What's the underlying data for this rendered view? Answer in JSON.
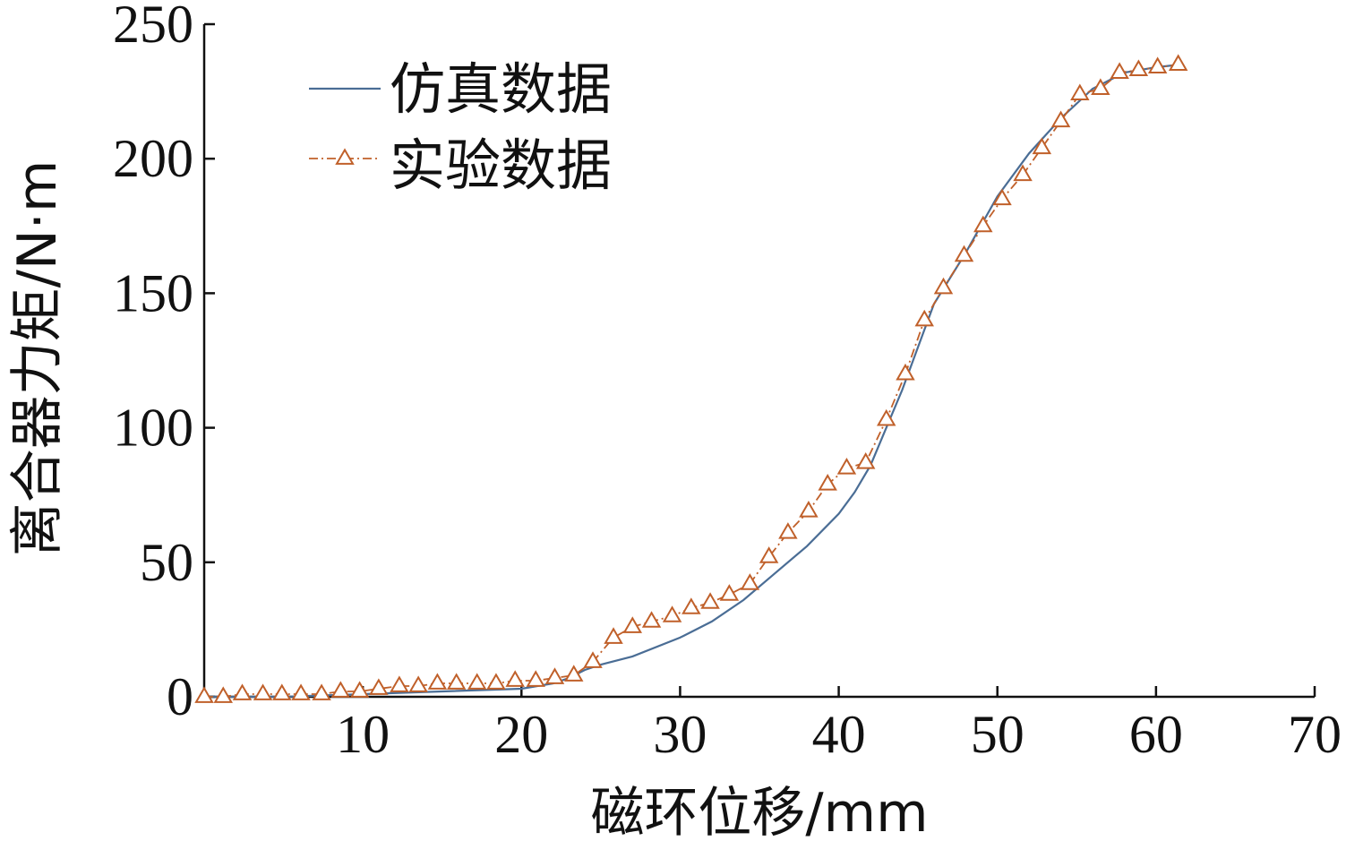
{
  "chart_data": {
    "type": "line",
    "xlabel": "磁环位移/mm",
    "ylabel": "离合器力矩/N·m",
    "xlim": [
      0,
      70
    ],
    "ylim": [
      0,
      250
    ],
    "x_ticks": [
      10,
      20,
      30,
      40,
      50,
      60,
      70
    ],
    "x_tick_labels": [
      "10",
      "20",
      "30",
      "40",
      "50",
      "60",
      "70"
    ],
    "y_ticks": [
      0,
      50,
      100,
      150,
      200,
      250
    ],
    "y_tick_labels": [
      "0",
      "50",
      "100",
      "150",
      "200",
      "250"
    ],
    "grid": false,
    "legend_position": "top-left",
    "series": [
      {
        "name": "仿真数据",
        "color": "#4a6d95",
        "style": "solid",
        "marker": "none",
        "points": [
          [
            0,
            0
          ],
          [
            5,
            0
          ],
          [
            10,
            1
          ],
          [
            15,
            2
          ],
          [
            20,
            3
          ],
          [
            22,
            5
          ],
          [
            23,
            7
          ],
          [
            24,
            10
          ],
          [
            25,
            12
          ],
          [
            27,
            15
          ],
          [
            30,
            22
          ],
          [
            32,
            28
          ],
          [
            34,
            36
          ],
          [
            36,
            46
          ],
          [
            38,
            56
          ],
          [
            40,
            68
          ],
          [
            41,
            76
          ],
          [
            42,
            86
          ],
          [
            43,
            100
          ],
          [
            44,
            114
          ],
          [
            45,
            130
          ],
          [
            46,
            146
          ],
          [
            48,
            165
          ],
          [
            50,
            186
          ],
          [
            52,
            202
          ],
          [
            54,
            215
          ],
          [
            56,
            226
          ],
          [
            58,
            232
          ],
          [
            60,
            234
          ],
          [
            61.5,
            235
          ]
        ]
      },
      {
        "name": "实验数据",
        "color": "#c0602a",
        "style": "dashdot",
        "marker": "triangle",
        "points": [
          [
            0,
            0
          ],
          [
            1.2,
            0
          ],
          [
            2.4,
            1
          ],
          [
            3.7,
            1
          ],
          [
            4.9,
            1
          ],
          [
            6.1,
            1
          ],
          [
            7.4,
            1
          ],
          [
            8.6,
            2
          ],
          [
            9.8,
            2
          ],
          [
            11.0,
            3
          ],
          [
            12.3,
            4
          ],
          [
            13.5,
            4
          ],
          [
            14.7,
            5
          ],
          [
            15.9,
            5
          ],
          [
            17.2,
            5
          ],
          [
            18.4,
            5
          ],
          [
            19.6,
            6
          ],
          [
            20.9,
            6
          ],
          [
            22.1,
            7
          ],
          [
            23.3,
            8
          ],
          [
            24.5,
            13
          ],
          [
            25.8,
            22
          ],
          [
            27.0,
            26
          ],
          [
            28.2,
            28
          ],
          [
            29.5,
            30
          ],
          [
            30.7,
            33
          ],
          [
            31.9,
            35
          ],
          [
            33.1,
            38
          ],
          [
            34.4,
            42
          ],
          [
            35.6,
            52
          ],
          [
            36.8,
            61
          ],
          [
            38.1,
            69
          ],
          [
            39.3,
            79
          ],
          [
            40.5,
            85
          ],
          [
            41.7,
            87
          ],
          [
            43.0,
            103
          ],
          [
            44.2,
            120
          ],
          [
            45.4,
            140
          ],
          [
            46.6,
            152
          ],
          [
            47.9,
            164
          ],
          [
            49.1,
            175
          ],
          [
            50.3,
            185
          ],
          [
            51.6,
            194
          ],
          [
            52.8,
            204
          ],
          [
            54.0,
            214
          ],
          [
            55.2,
            224
          ],
          [
            56.5,
            226
          ],
          [
            57.7,
            232
          ],
          [
            58.9,
            233
          ],
          [
            60.1,
            234
          ],
          [
            61.4,
            235
          ]
        ]
      }
    ]
  }
}
